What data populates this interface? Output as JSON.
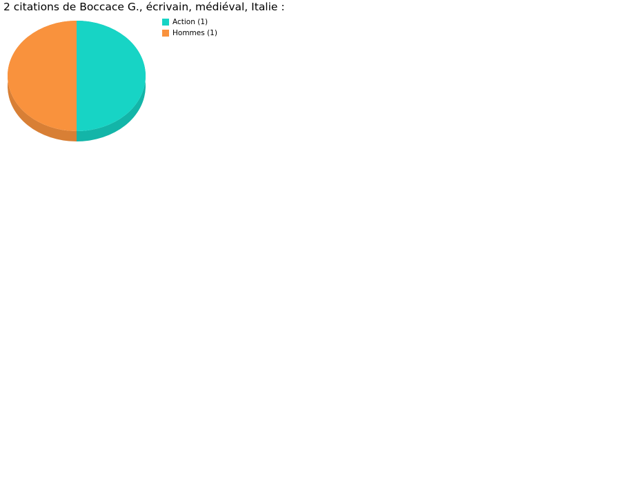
{
  "chart_data": {
    "type": "pie",
    "title": "2 citations de Boccace G., écrivain, médiéval, Italie :",
    "style": "3d",
    "legend_position": "top-right",
    "slices": [
      {
        "label": "Action (1)",
        "value": 1,
        "color": "#17D4C5",
        "side_color": "#13B5A8"
      },
      {
        "label": "Hommes (1)",
        "value": 1,
        "color": "#F9923D",
        "side_color": "#D87F35"
      }
    ]
  }
}
